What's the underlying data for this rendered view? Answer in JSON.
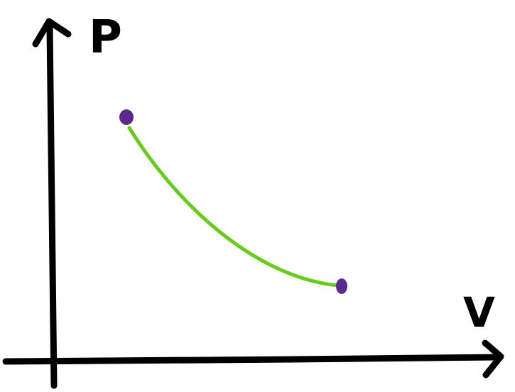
{
  "diagram": {
    "y_axis_label": "P",
    "x_axis_label": "V",
    "colors": {
      "axes": "#000000",
      "curve": "#66cc1a",
      "endpoints": "#5a2a8c"
    }
  }
}
